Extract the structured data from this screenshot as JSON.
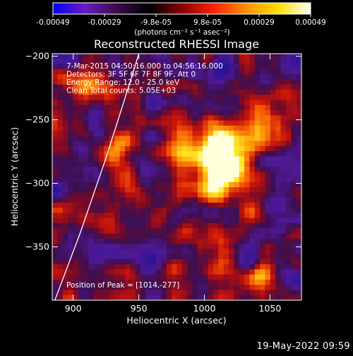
{
  "colorbar": {
    "tick_labels": [
      "-0.00049",
      "-0.00029",
      "-9.8e-05",
      "9.8e-05",
      "0.00029",
      "0.00049"
    ],
    "units": "(photons cm⁻² s⁻¹ asec⁻²)",
    "colors": [
      "#0000ff",
      "#6a1dc0",
      "#3a0a4a",
      "#000000",
      "#8a0000",
      "#ff2000",
      "#ff9000",
      "#ffe000",
      "#ffffff"
    ]
  },
  "chart_data": {
    "type": "heatmap",
    "title": "Reconstructed RHESSI Image",
    "xlabel": "Heliocentric X (arcsec)",
    "ylabel": "Heliocentric Y (arcsec)",
    "xlim": [
      884,
      1074
    ],
    "ylim": [
      -392,
      -198
    ],
    "xticks": [
      900,
      950,
      1000,
      1050
    ],
    "yticks": [
      -200,
      -250,
      -300,
      -350
    ],
    "xtick_labels": [
      "900",
      "950",
      "1000",
      "1050"
    ],
    "ytick_labels": [
      "−200",
      "−250",
      "−300",
      "−350"
    ],
    "value_range": [
      -0.00049,
      0.00049
    ],
    "limb_curve": {
      "x": [
        886,
        905,
        925,
        945,
        950
      ],
      "y": [
        -392,
        -340,
        -280,
        -215,
        -198
      ]
    },
    "peak": {
      "x": 1014,
      "y": -277
    },
    "annotations": [
      "7-Mar-2015 04:50:16.000 to 04:56:16.000",
      "Detectors: 3F 5F 6F 7F 8F 9F, Att 0",
      "Energy Range: 12.0 - 25.0 keV",
      "Clean     Total counts: 5.05E+03"
    ],
    "peak_label": "Position of Peak = [1014,-277]"
  },
  "footer": {
    "timestamp": "19-May-2022 09:59"
  }
}
